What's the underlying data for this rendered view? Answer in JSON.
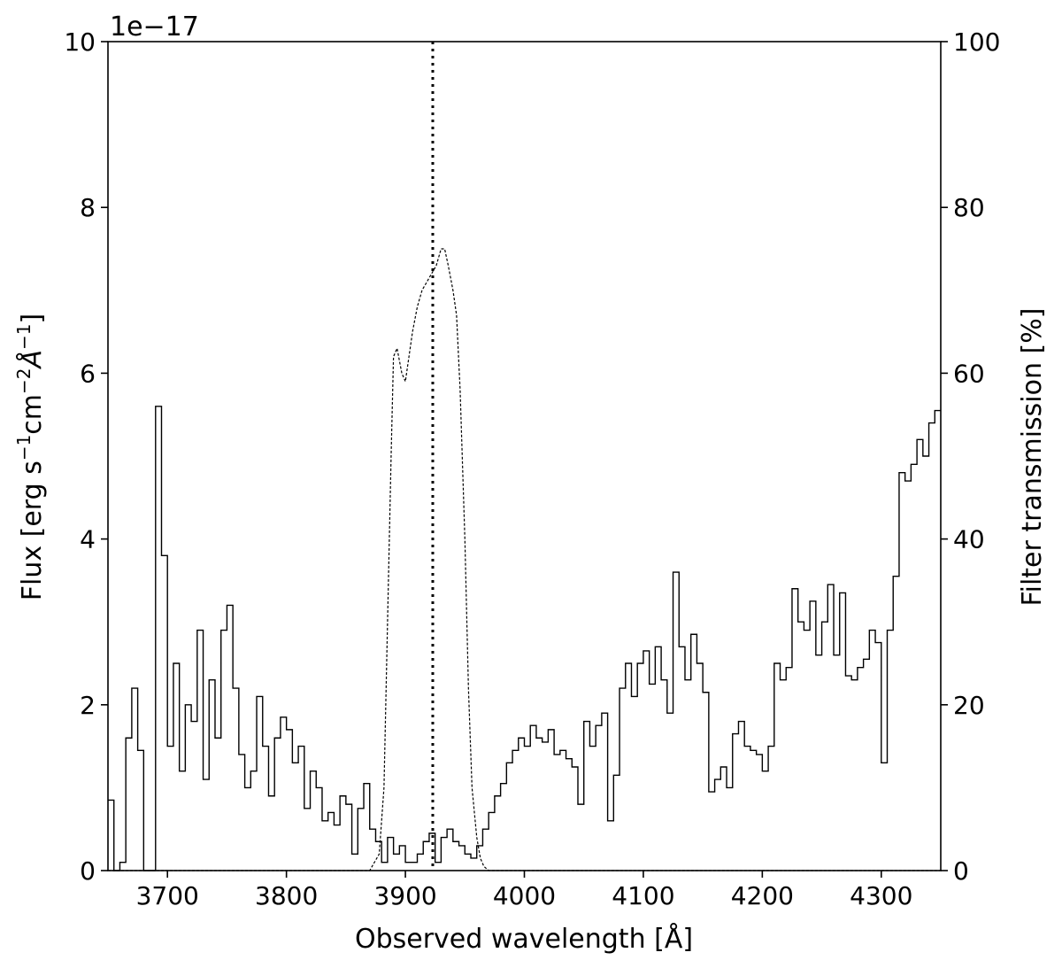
{
  "chart_data": {
    "type": "line",
    "title": "",
    "xlabel": "Observed wavelength [Å]",
    "ylabel_left": "Flux [erg s^-1 cm^-2 Å^-1]",
    "ylabel_right": "Filter transmission [%]",
    "y_offset_label": "1e−17",
    "xlim": [
      3650,
      4350
    ],
    "ylim_left": [
      0,
      10
    ],
    "ylim_right": [
      0,
      100
    ],
    "x_ticks": [
      3700,
      3800,
      3900,
      4000,
      4100,
      4200,
      4300
    ],
    "y_ticks_left": [
      0,
      2,
      4,
      6,
      8,
      10
    ],
    "y_ticks_right": [
      0,
      20,
      40,
      60,
      80,
      100
    ],
    "grid": false,
    "vertical_line": {
      "x": 3923,
      "style": "dotted"
    },
    "series": [
      {
        "axis": "left",
        "style": "step",
        "x": [
          3650,
          3655,
          3660,
          3665,
          3670,
          3675,
          3680,
          3685,
          3690,
          3695,
          3700,
          3705,
          3710,
          3715,
          3720,
          3725,
          3730,
          3735,
          3740,
          3745,
          3750,
          3755,
          3760,
          3765,
          3770,
          3775,
          3780,
          3785,
          3790,
          3795,
          3800,
          3805,
          3810,
          3815,
          3820,
          3825,
          3830,
          3835,
          3840,
          3845,
          3850,
          3855,
          3860,
          3865,
          3870,
          3875,
          3880,
          3885,
          3890,
          3895,
          3900,
          3905,
          3910,
          3915,
          3920,
          3925,
          3930,
          3935,
          3940,
          3945,
          3950,
          3955,
          3960,
          3965,
          3970,
          3975,
          3980,
          3985,
          3990,
          3995,
          4000,
          4005,
          4010,
          4015,
          4020,
          4025,
          4030,
          4035,
          4040,
          4045,
          4050,
          4055,
          4060,
          4065,
          4070,
          4075,
          4080,
          4085,
          4090,
          4095,
          4100,
          4105,
          4110,
          4115,
          4120,
          4125,
          4130,
          4135,
          4140,
          4145,
          4150,
          4155,
          4160,
          4165,
          4170,
          4175,
          4180,
          4185,
          4190,
          4195,
          4200,
          4205,
          4210,
          4215,
          4220,
          4225,
          4230,
          4235,
          4240,
          4245,
          4250,
          4255,
          4260,
          4265,
          4270,
          4275,
          4280,
          4285,
          4290,
          4295,
          4300,
          4305,
          4310,
          4315,
          4320,
          4325,
          4330,
          4335,
          4340,
          4345
        ],
        "values": [
          0.85,
          0.0,
          0.1,
          1.6,
          2.2,
          1.45,
          0.0,
          0.0,
          5.6,
          3.8,
          1.5,
          2.5,
          1.2,
          2.0,
          1.8,
          2.9,
          1.1,
          2.3,
          1.6,
          2.9,
          3.2,
          2.2,
          1.4,
          1.0,
          1.2,
          2.1,
          1.5,
          0.9,
          1.6,
          1.85,
          1.7,
          1.3,
          1.5,
          0.75,
          1.2,
          1.0,
          0.6,
          0.7,
          0.55,
          0.9,
          0.8,
          0.2,
          0.75,
          1.05,
          0.5,
          0.35,
          0.1,
          0.4,
          0.2,
          0.3,
          0.1,
          0.1,
          0.2,
          0.35,
          0.45,
          0.1,
          0.4,
          0.5,
          0.35,
          0.3,
          0.2,
          0.15,
          0.3,
          0.5,
          0.7,
          0.9,
          1.05,
          1.3,
          1.45,
          1.6,
          1.5,
          1.75,
          1.6,
          1.55,
          1.7,
          1.4,
          1.45,
          1.35,
          1.25,
          0.8,
          1.8,
          1.5,
          1.75,
          1.9,
          0.6,
          1.15,
          2.2,
          2.5,
          2.1,
          2.5,
          2.65,
          2.25,
          2.7,
          2.3,
          1.9,
          3.6,
          2.7,
          2.3,
          2.85,
          2.5,
          2.15,
          0.95,
          1.1,
          1.25,
          1.0,
          1.65,
          1.8,
          1.5,
          1.45,
          1.4,
          1.2,
          1.5,
          2.5,
          2.3,
          2.45,
          3.4,
          3.0,
          2.9,
          3.25,
          2.6,
          3.0,
          3.45,
          2.6,
          3.35,
          2.35,
          2.3,
          2.45,
          2.55,
          2.9,
          2.75,
          1.3,
          2.9,
          3.55,
          4.8,
          4.7,
          4.9,
          5.2,
          5.0,
          5.4,
          5.55
        ]
      },
      {
        "axis": "right",
        "style": "dashed",
        "x": [
          3650,
          3870,
          3878,
          3882,
          3885,
          3888,
          3890,
          3893,
          3897,
          3900,
          3903,
          3906,
          3910,
          3914,
          3918,
          3922,
          3926,
          3930,
          3933,
          3936,
          3940,
          3943,
          3946,
          3950,
          3953,
          3956,
          3960,
          3963,
          3966,
          3970,
          4350
        ],
        "values": [
          0,
          0,
          2,
          10,
          30,
          50,
          62,
          63,
          60,
          59,
          62,
          65,
          68,
          70,
          71,
          72,
          73,
          75,
          75,
          73,
          70,
          67,
          58,
          40,
          22,
          10,
          4,
          1.5,
          0.5,
          0,
          0
        ]
      }
    ]
  }
}
